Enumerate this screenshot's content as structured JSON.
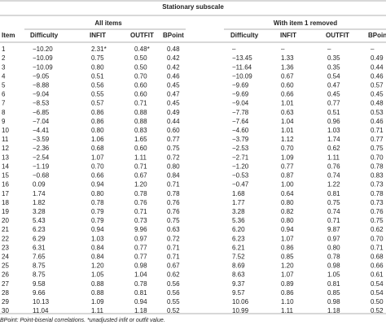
{
  "table": {
    "title": "Stationary subscale",
    "groups": [
      "All items",
      "With item 1 removed"
    ],
    "columns": [
      "Item",
      "Difficulty",
      "INFIT",
      "OUTFIT",
      "BPoint",
      "Difficulty",
      "INFIT",
      "OUTFIT",
      "BPoint"
    ],
    "rows": [
      [
        "1",
        "−10.20",
        "2.31*",
        "0.48*",
        "0.48",
        "–",
        "–",
        "–",
        "–"
      ],
      [
        "2",
        "−10.09",
        "0.75",
        "0.50",
        "0.42",
        "−13.45",
        "1.33",
        "0.35",
        "0.49"
      ],
      [
        "3",
        "−10.09",
        "0.80",
        "0.50",
        "0.42",
        "−11.64",
        "1.36",
        "0.35",
        "0.44"
      ],
      [
        "4",
        "−9.05",
        "0.51",
        "0.70",
        "0.46",
        "−10.09",
        "0.67",
        "0.54",
        "0.46"
      ],
      [
        "5",
        "−8.88",
        "0.56",
        "0.60",
        "0.45",
        "−9.69",
        "0.60",
        "0.47",
        "0.57"
      ],
      [
        "6",
        "−9.04",
        "0.55",
        "0.60",
        "0.47",
        "−9.69",
        "0.66",
        "0.45",
        "0.45"
      ],
      [
        "7",
        "−8.53",
        "0.57",
        "0.71",
        "0.45",
        "−9.04",
        "1.01",
        "0.77",
        "0.48"
      ],
      [
        "8",
        "−6.85",
        "0.86",
        "0.88",
        "0.49",
        "−7.78",
        "0.63",
        "0.51",
        "0.53"
      ],
      [
        "9",
        "−7.04",
        "0.86",
        "0.88",
        "0.44",
        "−7.64",
        "1.04",
        "0.96",
        "0.46"
      ],
      [
        "10",
        "−4.41",
        "0.80",
        "0.83",
        "0.60",
        "−4.60",
        "1.01",
        "1.03",
        "0.71"
      ],
      [
        "11",
        "−3.59",
        "1.06",
        "1.65",
        "0.77",
        "−3.79",
        "1.12",
        "1.74",
        "0.77"
      ],
      [
        "12",
        "−2.36",
        "0.68",
        "0.60",
        "0.75",
        "−2.53",
        "0.70",
        "0.62",
        "0.75"
      ],
      [
        "13",
        "−2.54",
        "1.07",
        "1.11",
        "0.72",
        "−2.71",
        "1.09",
        "1.11",
        "0.70"
      ],
      [
        "14",
        "−1.19",
        "0.70",
        "0.71",
        "0.80",
        "−1.20",
        "0.77",
        "0.76",
        "0.78"
      ],
      [
        "15",
        "−0.68",
        "0.66",
        "0.67",
        "0.84",
        "−0.53",
        "0.87",
        "0.74",
        "0.83"
      ],
      [
        "16",
        "0.09",
        "0.94",
        "1.20",
        "0.71",
        "−0.47",
        "1.00",
        "1.22",
        "0.73"
      ],
      [
        "17",
        "1.74",
        "0.80",
        "0.78",
        "0.78",
        "1.68",
        "0.64",
        "0.81",
        "0.78"
      ],
      [
        "18",
        "1.82",
        "0.78",
        "0.76",
        "0.76",
        "1.77",
        "0.80",
        "0.75",
        "0.73"
      ],
      [
        "19",
        "3.28",
        "0.79",
        "0.71",
        "0.76",
        "3.28",
        "0.82",
        "0.74",
        "0.76"
      ],
      [
        "20",
        "5.43",
        "0.79",
        "0.73",
        "0.75",
        "5.36",
        "0.80",
        "0.71",
        "0.75"
      ],
      [
        "21",
        "6.23",
        "0.94",
        "9.96",
        "0.63",
        "6.20",
        "0.94",
        "9.87",
        "0.62"
      ],
      [
        "22",
        "6.29",
        "1.03",
        "0.97",
        "0.72",
        "6.23",
        "1.07",
        "0.97",
        "0.70"
      ],
      [
        "23",
        "6.31",
        "0.84",
        "0.77",
        "0.71",
        "6.21",
        "0.86",
        "0.80",
        "0.71"
      ],
      [
        "24",
        "7.65",
        "0.84",
        "0.77",
        "0.71",
        "7.52",
        "0.85",
        "0.78",
        "0.68"
      ],
      [
        "25",
        "8.75",
        "1.20",
        "0.98",
        "0.67",
        "8.69",
        "1.20",
        "0.98",
        "0.66"
      ],
      [
        "26",
        "8.75",
        "1.05",
        "1.04",
        "0.62",
        "8.63",
        "1.07",
        "1.05",
        "0.61"
      ],
      [
        "27",
        "9.58",
        "0.88",
        "0.78",
        "0.56",
        "9.37",
        "0.89",
        "0.81",
        "0.54"
      ],
      [
        "28",
        "9.66",
        "0.88",
        "0.81",
        "0.56",
        "9.57",
        "0.86",
        "0.85",
        "0.54"
      ],
      [
        "29",
        "10.13",
        "1.09",
        "0.94",
        "0.55",
        "10.06",
        "1.10",
        "0.98",
        "0.50"
      ],
      [
        "30",
        "11.04",
        "1.11",
        "1.18",
        "0.52",
        "10.99",
        "1.11",
        "1.18",
        "0.52"
      ]
    ],
    "footnote": "BPoint: Point-biserial correlations. *unadjusted infit or outfit value."
  }
}
